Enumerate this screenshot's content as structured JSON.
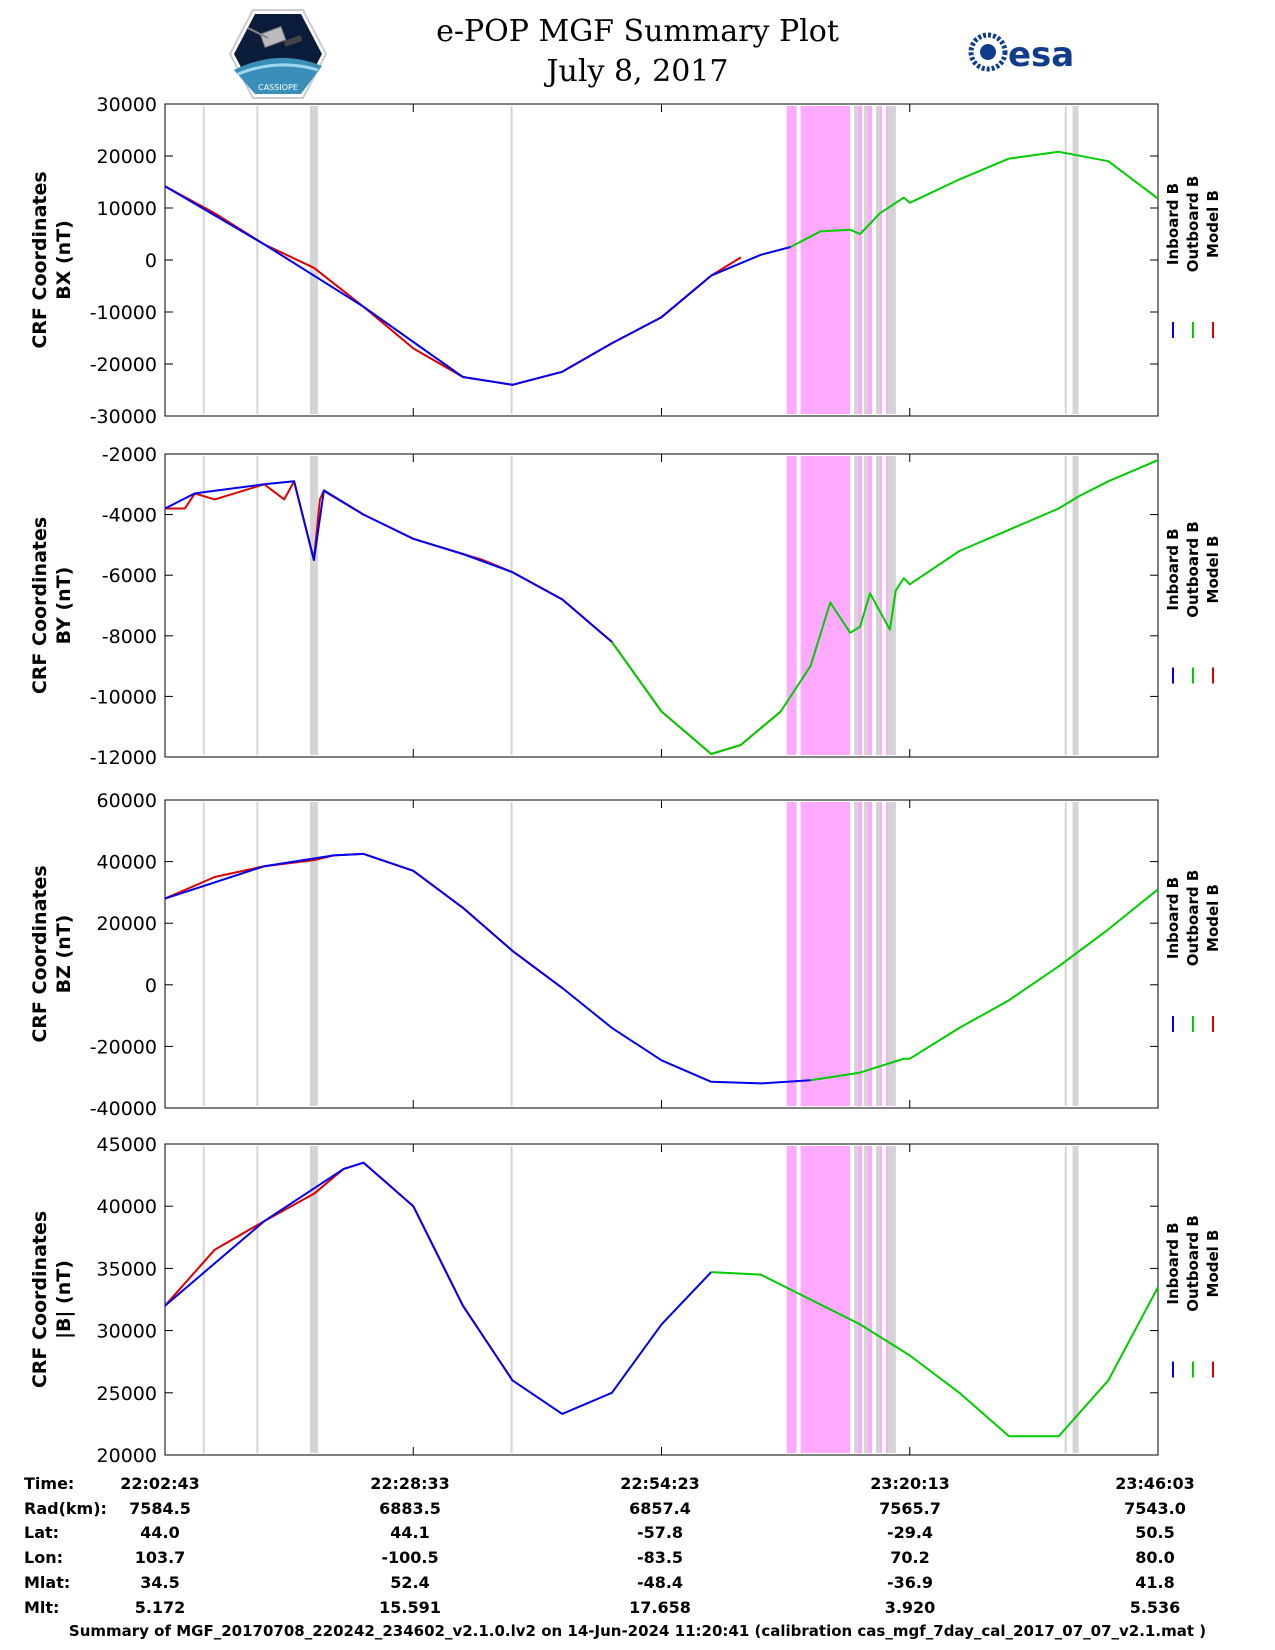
{
  "header": {
    "title_line1": "e-POP MGF Summary Plot",
    "title_line2": "July 8, 2017",
    "left_logo": "cassiope-mission-logo",
    "left_logo_text": "CASSIOPE",
    "right_logo": "esa-logo",
    "right_logo_text": "esa"
  },
  "colors": {
    "inboard": "#0000ee",
    "outboard": "#00cc00",
    "model": "#dd0000",
    "gap_shading": "#d4d4d4",
    "event_shading": "#ffaaff"
  },
  "chart_data": [
    {
      "type": "line",
      "ylabel_line1": "CRF Coordinates",
      "ylabel_line2": "BX (nT)",
      "ylim": [
        -30000,
        30000
      ],
      "yticks": [
        "30000",
        "20000",
        "10000",
        "0",
        "-10000",
        "-20000",
        "-30000"
      ],
      "ytick_values": [
        30000,
        20000,
        10000,
        0,
        -10000,
        -20000,
        -30000
      ],
      "legend": [
        "Inboard B",
        "Outboard B",
        "Model B"
      ],
      "series": [
        {
          "name": "Model B",
          "x": [
            0,
            0.25,
            0.5,
            0.75,
            1.0,
            1.25,
            1.5,
            1.75,
            2.0,
            2.25,
            2.5,
            2.75,
            2.9
          ],
          "y": [
            14200,
            9000,
            3000,
            -1500,
            -9000,
            -17000,
            -22500,
            -24000,
            -21500,
            -16000,
            -11000,
            -3000,
            500
          ]
        },
        {
          "name": "Inboard B",
          "x": [
            0,
            0.5,
            1.0,
            1.5,
            1.75,
            2.0,
            2.25,
            2.5,
            2.75,
            3.0,
            3.15
          ],
          "y": [
            14200,
            3000,
            -9000,
            -22500,
            -24000,
            -21500,
            -16000,
            -11000,
            -3000,
            1000,
            2500
          ]
        },
        {
          "name": "Outboard B",
          "x": [
            3.15,
            3.3,
            3.45,
            3.5,
            3.6,
            3.72,
            3.75,
            4.0,
            4.25,
            4.5,
            4.75,
            5.0
          ],
          "y": [
            2500,
            5500,
            5800,
            5000,
            9000,
            12000,
            11000,
            15500,
            19500,
            20800,
            19000,
            11800
          ]
        }
      ]
    },
    {
      "type": "line",
      "ylabel_line1": "CRF Coordinates",
      "ylabel_line2": "BY (nT)",
      "ylim": [
        -12000,
        -2000
      ],
      "yticks": [
        "-2000",
        "-4000",
        "-6000",
        "-8000",
        "-10000",
        "-12000"
      ],
      "ytick_values": [
        -2000,
        -4000,
        -6000,
        -8000,
        -10000,
        -12000
      ],
      "legend": [
        "Inboard B",
        "Outboard B",
        "Model B"
      ],
      "series": [
        {
          "name": "Model B",
          "x": [
            0,
            0.1,
            0.15,
            0.25,
            0.5,
            0.6,
            0.65,
            0.75,
            0.78,
            0.8,
            0.82,
            1.0,
            1.25,
            1.5,
            1.6,
            1.75,
            2.0,
            2.25,
            2.5,
            2.75,
            2.9,
            3.1
          ],
          "y": [
            -3800,
            -3800,
            -3300,
            -3500,
            -3000,
            -3500,
            -2900,
            -5500,
            -3500,
            -3200,
            -3300,
            -4000,
            -4800,
            -5300,
            -5500,
            -5900,
            -6800,
            -8200,
            -10500,
            -11900,
            -11600,
            -10500
          ]
        },
        {
          "name": "Inboard B",
          "x": [
            0,
            0.15,
            0.5,
            0.65,
            0.75,
            0.8,
            1.0,
            1.25,
            1.5,
            1.75,
            2.0,
            2.25
          ],
          "y": [
            -3800,
            -3300,
            -3000,
            -2900,
            -5500,
            -3200,
            -4000,
            -4800,
            -5300,
            -5900,
            -6800,
            -8200
          ]
        },
        {
          "name": "Outboard B",
          "x": [
            2.25,
            2.5,
            2.75,
            2.9,
            3.1,
            3.25,
            3.35,
            3.45,
            3.5,
            3.55,
            3.65,
            3.68,
            3.72,
            3.75,
            4.0,
            4.25,
            4.5,
            4.6,
            4.75,
            5.0
          ],
          "y": [
            -8200,
            -10500,
            -11900,
            -11600,
            -10500,
            -9000,
            -6900,
            -7900,
            -7700,
            -6600,
            -7800,
            -6500,
            -6100,
            -6300,
            -5200,
            -4500,
            -3800,
            -3400,
            -2900,
            -2200
          ]
        }
      ]
    },
    {
      "type": "line",
      "ylabel_line1": "CRF Coordinates",
      "ylabel_line2": "BZ (nT)",
      "ylim": [
        -40000,
        60000
      ],
      "yticks": [
        "60000",
        "40000",
        "20000",
        "0",
        "-20000",
        "-40000"
      ],
      "ytick_values": [
        60000,
        40000,
        20000,
        0,
        -20000,
        -40000
      ],
      "legend": [
        "Inboard B",
        "Outboard B",
        "Model B"
      ],
      "series": [
        {
          "name": "Model B",
          "x": [
            0,
            0.25,
            0.5,
            0.75,
            0.85,
            1.0,
            1.25,
            1.5,
            1.75,
            2.0
          ],
          "y": [
            28000,
            35000,
            38500,
            40500,
            42000,
            42500,
            37000,
            25000,
            11000,
            -1000
          ]
        },
        {
          "name": "Inboard B",
          "x": [
            0,
            0.5,
            0.85,
            1.0,
            1.25,
            1.5,
            1.75,
            2.0,
            2.25,
            2.5,
            2.75,
            3.0,
            3.25
          ],
          "y": [
            28000,
            38500,
            42000,
            42500,
            37000,
            25000,
            11000,
            -1000,
            -14000,
            -24500,
            -31500,
            -32000,
            -31000
          ]
        },
        {
          "name": "Outboard B",
          "x": [
            3.25,
            3.5,
            3.72,
            3.75,
            4.0,
            4.25,
            4.5,
            4.75,
            5.0
          ],
          "y": [
            -31000,
            -28500,
            -24000,
            -24000,
            -14000,
            -5000,
            6000,
            18000,
            31000
          ]
        }
      ]
    },
    {
      "type": "line",
      "ylabel_line1": "CRF Coordinates",
      "ylabel_line2": "|B| (nT)",
      "ylim": [
        20000,
        45000
      ],
      "yticks": [
        "45000",
        "40000",
        "35000",
        "30000",
        "25000",
        "20000"
      ],
      "ytick_values": [
        45000,
        40000,
        35000,
        30000,
        25000,
        20000
      ],
      "legend": [
        "Inboard B",
        "Outboard B",
        "Model B"
      ],
      "series": [
        {
          "name": "Model B",
          "x": [
            0,
            0.25,
            0.5,
            0.75,
            0.9,
            1.0,
            1.25,
            1.5,
            1.75
          ],
          "y": [
            32000,
            36500,
            38800,
            41000,
            43000,
            43500,
            40000,
            32000,
            26000
          ]
        },
        {
          "name": "Inboard B",
          "x": [
            0,
            0.5,
            0.9,
            1.0,
            1.25,
            1.5,
            1.75,
            2.0,
            2.25,
            2.5,
            2.75
          ],
          "y": [
            32000,
            38800,
            43000,
            43500,
            40000,
            32000,
            26000,
            23300,
            25000,
            30500,
            34700
          ]
        },
        {
          "name": "Outboard B",
          "x": [
            2.75,
            3.0,
            3.25,
            3.5,
            3.75,
            4.0,
            4.25,
            4.5,
            4.75,
            5.0
          ],
          "y": [
            34700,
            34500,
            32500,
            30500,
            28000,
            25000,
            21500,
            21500,
            26000,
            33500
          ]
        }
      ]
    }
  ],
  "gaps_data": {
    "gray_intervals": [
      [
        0.19,
        0.2
      ],
      [
        0.46,
        0.47
      ],
      [
        0.73,
        0.77
      ],
      [
        1.74,
        1.75
      ],
      [
        4.53,
        4.54
      ],
      [
        4.57,
        4.6
      ]
    ],
    "magenta_intervals": [
      [
        3.13,
        3.67
      ]
    ],
    "white_dividers": [
      3.19,
      3.46,
      3.52,
      3.57,
      3.62
    ],
    "gray_overlays_in_magenta": [
      [
        3.47,
        3.49
      ],
      [
        3.52,
        3.54
      ],
      [
        3.58,
        3.6
      ],
      [
        3.64,
        3.68
      ]
    ]
  },
  "info_table": {
    "labels": [
      "Time:",
      "Rad(km):",
      "Lat:",
      "Lon:",
      "Mlat:",
      "Mlt:"
    ],
    "columns": [
      {
        "values": [
          "22:02:43",
          "7584.5",
          "44.0",
          "103.7",
          "34.5",
          "5.172"
        ]
      },
      {
        "values": [
          "22:28:33",
          "6883.5",
          "44.1",
          "-100.5",
          "52.4",
          "15.591"
        ]
      },
      {
        "values": [
          "22:54:23",
          "6857.4",
          "-57.8",
          "-83.5",
          "-48.4",
          "17.658"
        ]
      },
      {
        "values": [
          "23:20:13",
          "7565.7",
          "-29.4",
          "70.2",
          "-36.9",
          "3.920"
        ]
      },
      {
        "values": [
          "23:46:03",
          "7543.0",
          "50.5",
          "80.0",
          "41.8",
          "5.536"
        ]
      }
    ]
  },
  "footer": {
    "text": "Summary of MGF_20170708_220242_234602_v2.1.0.lv2 on 14-Jun-2024 11:20:41 (calibration cas_mgf_7day_cal_2017_07_07_v2.1.mat )"
  }
}
